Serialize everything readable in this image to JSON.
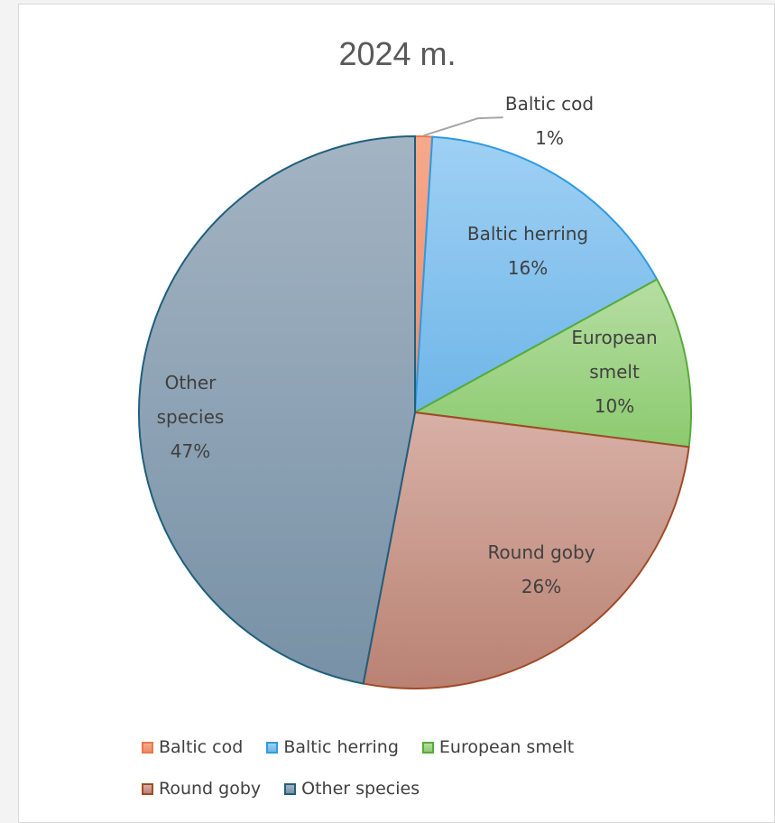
{
  "chart_data": {
    "type": "pie",
    "title": "2024 m.",
    "categories": [
      "Baltic cod",
      "Baltic herring",
      "European smelt",
      "Round goby",
      "Other species"
    ],
    "values": [
      1,
      16,
      10,
      26,
      47
    ],
    "value_format": "percent",
    "start_angle": "12 o'clock, clockwise",
    "legend_position": "bottom",
    "colors": {
      "Baltic cod": {
        "fill_top": "#f6a98c",
        "fill_bottom": "#ef8a64",
        "stroke": "#e9774d"
      },
      "Baltic herring": {
        "fill_top": "#9fd0f4",
        "fill_bottom": "#6fb6e8",
        "stroke": "#2f9ae0"
      },
      "European smelt": {
        "fill_top": "#b6dea3",
        "fill_bottom": "#8cca6f",
        "stroke": "#57ab38"
      },
      "Round goby": {
        "fill_top": "#d8b0a6",
        "fill_bottom": "#b98273",
        "stroke": "#a04b25"
      },
      "Other species": {
        "fill_top": "#a3b4c3",
        "fill_bottom": "#7891a6",
        "stroke": "#1f5f7d"
      }
    },
    "labels": [
      {
        "lines": [
          "Baltic cod",
          "1%"
        ]
      },
      {
        "lines": [
          "Baltic herring",
          "16%"
        ]
      },
      {
        "lines": [
          "European",
          "smelt",
          "10%"
        ]
      },
      {
        "lines": [
          "Round goby",
          "26%"
        ]
      },
      {
        "lines": [
          "Other",
          "species",
          "47%"
        ]
      }
    ]
  },
  "legend": {
    "row1": [
      "Baltic cod",
      "Baltic herring",
      "European smelt"
    ],
    "row2": [
      "Round goby",
      "Other species"
    ]
  }
}
